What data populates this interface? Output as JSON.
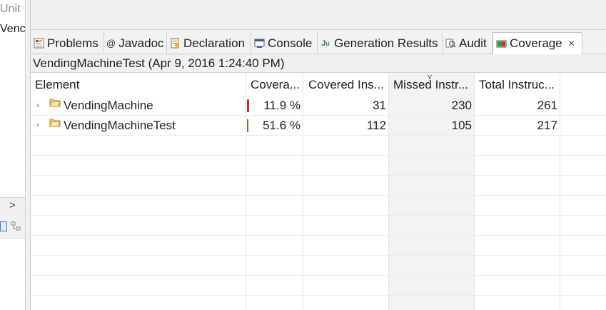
{
  "left_panel": {
    "truncated_title": "Unit",
    "truncated_item": "Venc"
  },
  "tabs": [
    {
      "label": "Problems",
      "icon": "problems-icon"
    },
    {
      "label": "Javadoc",
      "icon": "javadoc-icon"
    },
    {
      "label": "Declaration",
      "icon": "declaration-icon"
    },
    {
      "label": "Console",
      "icon": "console-icon"
    },
    {
      "label": "Generation Results",
      "icon": "generation-results-icon"
    },
    {
      "label": "Audit",
      "icon": "audit-icon"
    },
    {
      "label": "Coverage",
      "icon": "coverage-icon",
      "active": true
    }
  ],
  "session": {
    "title": "VendingMachineTest (Apr 9, 2016 1:24:40 PM)"
  },
  "table": {
    "columns": [
      "Element",
      "Covera...",
      "Covered Ins...",
      "Missed Instr...",
      "Total Instruc..."
    ],
    "rows": [
      {
        "element": "VendingMachine",
        "coverage": "11.9 %",
        "covered": "31",
        "missed": "230",
        "total": "261",
        "bar_color": "#d0312d"
      },
      {
        "element": "VendingMachineTest",
        "coverage": "51.6 %",
        "covered": "112",
        "missed": "105",
        "total": "217",
        "bar_color": "#8a6a3a"
      }
    ]
  },
  "colors": {
    "accent": "#3c78c8",
    "missed_column_bg": "#f3f3f3",
    "low_coverage_bar": "#d0312d"
  }
}
